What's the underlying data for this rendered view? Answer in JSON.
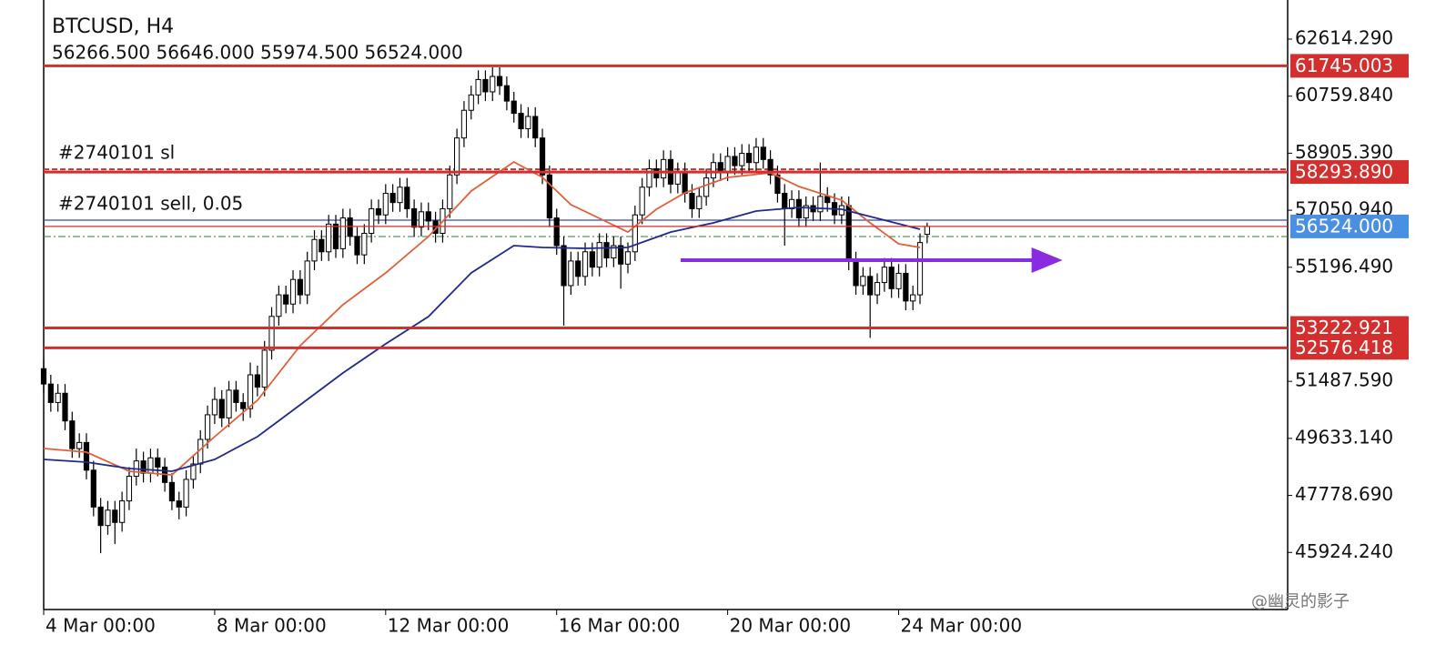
{
  "chart_data": {
    "type": "candlestick",
    "title": "BTCUSD, H4",
    "ohlc_text": "56266.500 56646.000 55974.500 56524.000",
    "xlim": [
      0,
      174.6
    ],
    "ylim": [
      44069,
      63886
    ],
    "xticks": [
      {
        "value": 0,
        "label": "4 Mar 00:00"
      },
      {
        "value": 24,
        "label": "8 Mar 00:00"
      },
      {
        "value": 48,
        "label": "12 Mar 00:00"
      },
      {
        "value": 72,
        "label": "16 Mar 00:00"
      },
      {
        "value": 96,
        "label": "20 Mar 00:00"
      },
      {
        "value": 120,
        "label": "24 Mar 00:00"
      }
    ],
    "yticks": [
      {
        "value": 62614.29,
        "label": "62614.290"
      },
      {
        "value": 60759.84,
        "label": "60759.840"
      },
      {
        "value": 58905.39,
        "label": "58905.390"
      },
      {
        "value": 57050.94,
        "label": "57050.940"
      },
      {
        "value": 55196.49,
        "label": "55196.490"
      },
      {
        "value": 51487.59,
        "label": "51487.590"
      },
      {
        "value": 49633.14,
        "label": "49633.140"
      },
      {
        "value": 47778.69,
        "label": "47778.690"
      },
      {
        "value": 45924.24,
        "label": "45924.240"
      }
    ],
    "ohlc": [
      [
        51900,
        52200,
        51100,
        51400
      ],
      [
        51400,
        51700,
        50500,
        50800
      ],
      [
        50800,
        51400,
        50500,
        51100
      ],
      [
        51100,
        51400,
        49900,
        50200
      ],
      [
        50200,
        50500,
        49000,
        49300
      ],
      [
        49300,
        49800,
        49000,
        49500
      ],
      [
        49500,
        49800,
        48300,
        48600
      ],
      [
        48600,
        48900,
        47100,
        47400
      ],
      [
        47400,
        47700,
        45900,
        46800
      ],
      [
        46800,
        47600,
        46500,
        47300
      ],
      [
        47300,
        47600,
        46200,
        46900
      ],
      [
        46900,
        47900,
        46600,
        47600
      ],
      [
        47600,
        48700,
        47300,
        48400
      ],
      [
        48400,
        49300,
        48100,
        48900
      ],
      [
        48900,
        49200,
        48200,
        48500
      ],
      [
        48500,
        49300,
        48200,
        49000
      ],
      [
        49000,
        49300,
        48400,
        48700
      ],
      [
        48700,
        49000,
        47900,
        48200
      ],
      [
        48200,
        48500,
        47300,
        47600
      ],
      [
        47600,
        47900,
        47000,
        47400
      ],
      [
        47400,
        48600,
        47100,
        48300
      ],
      [
        48300,
        49100,
        48000,
        48800
      ],
      [
        48800,
        49900,
        48500,
        49600
      ],
      [
        49600,
        50700,
        49300,
        50400
      ],
      [
        50400,
        51300,
        50100,
        50900
      ],
      [
        50900,
        51200,
        50000,
        50300
      ],
      [
        50300,
        51500,
        50000,
        51200
      ],
      [
        51200,
        51500,
        50500,
        50800
      ],
      [
        50800,
        51100,
        50200,
        50600
      ],
      [
        50600,
        52100,
        50300,
        51700
      ],
      [
        51700,
        52000,
        51000,
        51300
      ],
      [
        51300,
        52800,
        51000,
        52500
      ],
      [
        52500,
        53900,
        52200,
        53600
      ],
      [
        53600,
        54600,
        53300,
        54300
      ],
      [
        54300,
        54600,
        53700,
        54000
      ],
      [
        54000,
        55100,
        53700,
        54800
      ],
      [
        54800,
        55100,
        54000,
        54300
      ],
      [
        54300,
        55700,
        54000,
        55400
      ],
      [
        55400,
        56400,
        55100,
        56100
      ],
      [
        56100,
        56400,
        55400,
        55700
      ],
      [
        55700,
        56900,
        55400,
        56600
      ],
      [
        56600,
        56900,
        55500,
        55800
      ],
      [
        55800,
        57100,
        55500,
        56800
      ],
      [
        56800,
        57100,
        55900,
        56200
      ],
      [
        56200,
        56500,
        55300,
        55600
      ],
      [
        55600,
        56600,
        55300,
        56300
      ],
      [
        56300,
        57400,
        56000,
        57100
      ],
      [
        57100,
        57400,
        56600,
        56900
      ],
      [
        56900,
        57900,
        56600,
        57600
      ],
      [
        57600,
        57900,
        57000,
        57300
      ],
      [
        57300,
        58100,
        57000,
        57800
      ],
      [
        57800,
        58100,
        56800,
        57100
      ],
      [
        57100,
        57400,
        56200,
        56500
      ],
      [
        56500,
        57300,
        56200,
        57000
      ],
      [
        57000,
        57300,
        56400,
        56700
      ],
      [
        56700,
        57000,
        56000,
        56300
      ],
      [
        56300,
        57400,
        56000,
        57100
      ],
      [
        57100,
        58500,
        56800,
        58200
      ],
      [
        58200,
        59700,
        57900,
        59400
      ],
      [
        59400,
        60600,
        59100,
        60300
      ],
      [
        60300,
        61100,
        60000,
        60800
      ],
      [
        60800,
        61600,
        60500,
        61300
      ],
      [
        61300,
        61600,
        60600,
        60900
      ],
      [
        60900,
        61700,
        60600,
        61400
      ],
      [
        61400,
        61700,
        60800,
        61100
      ],
      [
        61100,
        61400,
        60300,
        60600
      ],
      [
        60600,
        60900,
        59900,
        60200
      ],
      [
        60200,
        60500,
        59400,
        59700
      ],
      [
        59700,
        60400,
        59400,
        60100
      ],
      [
        60100,
        60400,
        59100,
        59400
      ],
      [
        59400,
        59700,
        57900,
        58200
      ],
      [
        58200,
        58500,
        56500,
        56800
      ],
      [
        56800,
        57100,
        55600,
        55900
      ],
      [
        55900,
        56200,
        53300,
        54600
      ],
      [
        54600,
        55700,
        54300,
        55400
      ],
      [
        55400,
        55700,
        54600,
        54900
      ],
      [
        54900,
        56000,
        54600,
        55700
      ],
      [
        55700,
        56000,
        54900,
        55200
      ],
      [
        55200,
        56300,
        54900,
        56000
      ],
      [
        56000,
        56300,
        55200,
        55500
      ],
      [
        55500,
        56200,
        55200,
        55900
      ],
      [
        55900,
        56200,
        54500,
        55300
      ],
      [
        55300,
        56000,
        55000,
        55700
      ],
      [
        55700,
        57200,
        55400,
        56900
      ],
      [
        56900,
        58100,
        56600,
        57800
      ],
      [
        57800,
        58700,
        57500,
        58400
      ],
      [
        58400,
        58700,
        57800,
        58100
      ],
      [
        58100,
        59000,
        57800,
        58700
      ],
      [
        58700,
        59000,
        57600,
        57900
      ],
      [
        57900,
        58600,
        57600,
        58300
      ],
      [
        58300,
        58600,
        57300,
        57600
      ],
      [
        57600,
        57900,
        56800,
        57100
      ],
      [
        57100,
        57800,
        56800,
        57500
      ],
      [
        57500,
        58400,
        57200,
        58100
      ],
      [
        58100,
        58900,
        57800,
        58600
      ],
      [
        58600,
        58900,
        58000,
        58300
      ],
      [
        58300,
        59100,
        58000,
        58800
      ],
      [
        58800,
        59100,
        58200,
        58500
      ],
      [
        58500,
        59200,
        58200,
        58900
      ],
      [
        58900,
        59200,
        58300,
        58600
      ],
      [
        58600,
        59400,
        58300,
        59100
      ],
      [
        59100,
        59400,
        58400,
        58700
      ],
      [
        58700,
        59000,
        57900,
        58200
      ],
      [
        58200,
        58500,
        57300,
        57600
      ],
      [
        57600,
        57900,
        55900,
        57100
      ],
      [
        57100,
        57700,
        56800,
        57400
      ],
      [
        57400,
        57700,
        56500,
        56800
      ],
      [
        56800,
        57500,
        56500,
        57200
      ],
      [
        57200,
        57500,
        56700,
        57000
      ],
      [
        57000,
        58600,
        56700,
        57500
      ],
      [
        57500,
        57800,
        57000,
        57300
      ],
      [
        57300,
        57600,
        56600,
        56900
      ],
      [
        56900,
        57500,
        56600,
        57200
      ],
      [
        57200,
        57500,
        55100,
        55400
      ],
      [
        55400,
        55700,
        54300,
        54600
      ],
      [
        54600,
        55200,
        54300,
        54900
      ],
      [
        54900,
        55200,
        52900,
        54300
      ],
      [
        54300,
        55000,
        54000,
        54700
      ],
      [
        54700,
        55500,
        54400,
        55200
      ],
      [
        55200,
        55500,
        54200,
        54500
      ],
      [
        54500,
        55300,
        54200,
        55000
      ],
      [
        55000,
        55300,
        53800,
        54100
      ],
      [
        54100,
        54600,
        53800,
        54300
      ],
      [
        54300,
        56300,
        54000,
        56000
      ],
      [
        56266.5,
        56646,
        55974.5,
        56524
      ]
    ],
    "ma": [
      {
        "color": "#e0603a",
        "x": [
          0,
          6,
          12,
          18,
          24,
          30,
          36,
          42,
          48,
          54,
          60,
          66,
          70,
          74,
          78,
          82,
          86,
          90,
          96,
          102,
          106,
          112,
          116,
          120,
          123
        ],
        "values": [
          49303,
          49185,
          48564,
          48445,
          49688,
          50871,
          52646,
          53977,
          55012,
          56195,
          57674,
          58621,
          58118,
          57230,
          56786,
          56342,
          57083,
          57615,
          58118,
          58266,
          57822,
          57378,
          56639,
          55959,
          55840
        ]
      },
      {
        "color": "#1f2a8a",
        "x": [
          0,
          6,
          12,
          18,
          24,
          30,
          36,
          42,
          48,
          54,
          60,
          66,
          70,
          76,
          82,
          88,
          94,
          100,
          106,
          112,
          118,
          123
        ],
        "values": [
          48948,
          48860,
          48653,
          48564,
          48948,
          49688,
          50723,
          51758,
          52705,
          53592,
          55012,
          55899,
          55840,
          55811,
          55840,
          56342,
          56639,
          57024,
          57142,
          57083,
          56728,
          56432
        ]
      }
    ],
    "levels": [
      {
        "value": 61745.003,
        "label": "61745.003"
      },
      {
        "value": 58293.89,
        "label": "58293.890"
      },
      {
        "value": 53222.921,
        "label": "53222.921"
      },
      {
        "value": 52576.418,
        "label": "52576.418"
      }
    ],
    "current_price": {
      "value": 56524,
      "label": "56524.000"
    },
    "orders": [
      {
        "value": 58293.89,
        "label": "#2740101 sl"
      },
      {
        "value": 56639,
        "label": "#2740101 sell, 0.05"
      }
    ],
    "bid_line": 56196,
    "arrow": {
      "x": [
        89.4,
        143
      ],
      "value": 55427,
      "color": "#8a2be2"
    },
    "watermark": "@幽灵的影子"
  }
}
